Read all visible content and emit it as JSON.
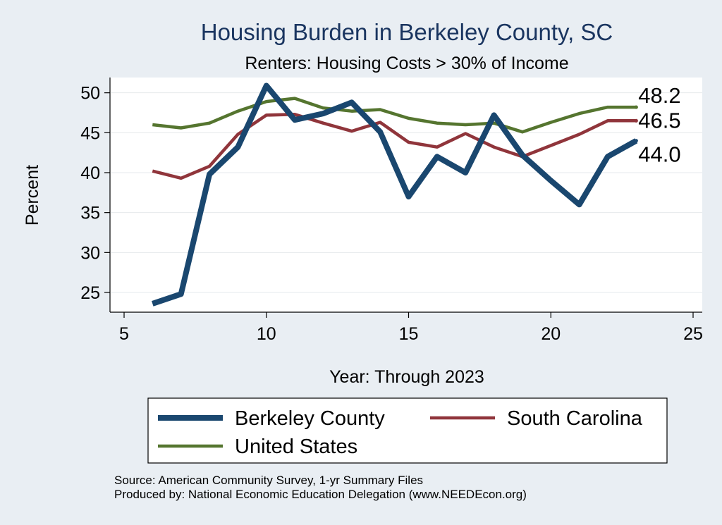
{
  "chart_data": {
    "type": "line",
    "title": "Housing Burden in Berkeley County, SC",
    "subtitle": "Renters: Housing Costs > 30% of Income",
    "xlabel": "Year: Through 2023",
    "ylabel": "Percent",
    "xlim": [
      5,
      25
    ],
    "ylim": [
      22,
      52
    ],
    "xticks": [
      5,
      10,
      15,
      20,
      25
    ],
    "yticks": [
      25,
      30,
      35,
      40,
      45,
      50
    ],
    "grid": true,
    "legend_position": "bottom",
    "x": [
      6,
      7,
      8,
      9,
      10,
      11,
      12,
      13,
      14,
      15,
      16,
      17,
      18,
      19,
      20,
      21,
      22,
      23
    ],
    "series": [
      {
        "name": "Berkeley County",
        "color": "#1a476f",
        "values": [
          23.6,
          24.8,
          39.8,
          43.2,
          50.9,
          46.6,
          47.4,
          48.8,
          45.1,
          37.0,
          42.0,
          40.0,
          47.2,
          42.2,
          39.0,
          36.0,
          42.0,
          44.0
        ],
        "end_label": "44.0"
      },
      {
        "name": "South Carolina",
        "color": "#90353b",
        "values": [
          40.2,
          39.3,
          40.8,
          44.8,
          47.2,
          47.3,
          46.2,
          45.2,
          46.3,
          43.8,
          43.2,
          44.9,
          43.2,
          42.0,
          43.4,
          44.8,
          46.5,
          46.5
        ],
        "end_label": "46.5"
      },
      {
        "name": "United States",
        "color": "#55752f",
        "values": [
          46.0,
          45.6,
          46.2,
          47.7,
          48.9,
          49.3,
          48.1,
          47.7,
          47.9,
          46.8,
          46.2,
          46.0,
          46.2,
          45.1,
          46.3,
          47.4,
          48.2,
          48.2
        ],
        "end_label": "48.2"
      }
    ]
  },
  "footer": {
    "source": "Source: American Community Survey, 1-yr Summary Files",
    "produced_by": "Produced by: National Economic Education Delegation (www.NEEDEcon.org)"
  }
}
